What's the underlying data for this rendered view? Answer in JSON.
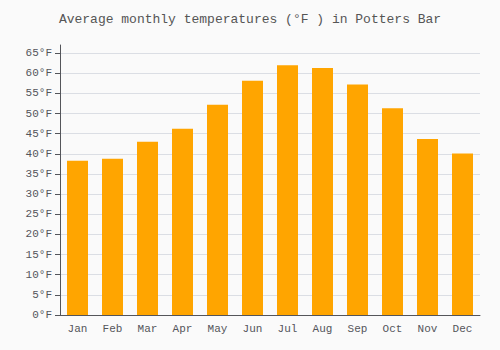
{
  "chart_data": {
    "type": "bar",
    "title": "Average monthly temperatures (°F ) in Potters Bar",
    "categories": [
      "Jan",
      "Feb",
      "Mar",
      "Apr",
      "May",
      "Jun",
      "Jul",
      "Aug",
      "Sep",
      "Oct",
      "Nov",
      "Dec"
    ],
    "values": [
      38.3,
      38.8,
      43.0,
      46.2,
      52.2,
      58.1,
      62.0,
      61.3,
      57.2,
      51.3,
      43.7,
      40.1
    ],
    "color": "#FFA500",
    "ylim": [
      0,
      67
    ],
    "yticks": [
      {
        "value": 0,
        "label": "0°F"
      },
      {
        "value": 5,
        "label": "5°F"
      },
      {
        "value": 10,
        "label": "10°F"
      },
      {
        "value": 15,
        "label": "15°F"
      },
      {
        "value": 20,
        "label": "20°F"
      },
      {
        "value": 25,
        "label": "25°F"
      },
      {
        "value": 30,
        "label": "30°F"
      },
      {
        "value": 35,
        "label": "35°F"
      },
      {
        "value": 40,
        "label": "40°F"
      },
      {
        "value": 45,
        "label": "45°F"
      },
      {
        "value": 50,
        "label": "50°F"
      },
      {
        "value": 55,
        "label": "55°F"
      },
      {
        "value": 60,
        "label": "60°F"
      },
      {
        "value": 65,
        "label": "65°F"
      }
    ],
    "grid": true
  }
}
